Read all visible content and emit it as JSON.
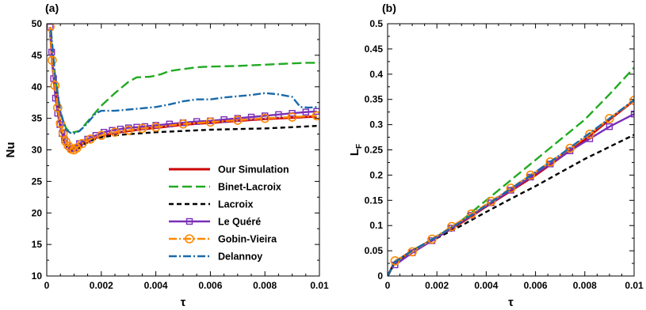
{
  "chart_data": [
    {
      "panel": "(a)",
      "type": "line",
      "xlabel": "τ",
      "ylabel": "Nu",
      "xlim": [
        0,
        0.01
      ],
      "ylim": [
        10,
        50
      ],
      "xticks": [
        0,
        0.002,
        0.004,
        0.006,
        0.008,
        0.01
      ],
      "xtick_labels": [
        "0",
        "0.002",
        "0.004",
        "0.006",
        "0.008",
        "0.01"
      ],
      "yticks": [
        10,
        15,
        20,
        25,
        30,
        35,
        40,
        45,
        50
      ],
      "ytick_labels": [
        "10",
        "15",
        "20",
        "25",
        "30",
        "35",
        "40",
        "45",
        "50"
      ],
      "grid": false,
      "legend": "lower-right",
      "series": [
        {
          "name": "Our Simulation",
          "color": "#cc0000",
          "dash": "solid",
          "marker": "none",
          "x": [
            0.00012,
            0.0002,
            0.0003,
            0.0004,
            0.0005,
            0.0006,
            0.0007,
            0.0008,
            0.0009,
            0.001,
            0.0011,
            0.0013,
            0.0016,
            0.002,
            0.0025,
            0.003,
            0.0035,
            0.004,
            0.005,
            0.006,
            0.007,
            0.008,
            0.009,
            0.0099
          ],
          "y": [
            49.5,
            44.0,
            40.0,
            36.5,
            34.0,
            32.5,
            31.2,
            30.5,
            30.0,
            29.9,
            30.2,
            30.9,
            31.6,
            32.2,
            32.7,
            33.0,
            33.3,
            33.5,
            34.0,
            34.3,
            34.6,
            34.9,
            35.1,
            35.3
          ]
        },
        {
          "name": "Binet-Lacroix",
          "color": "#22aa22",
          "dash": "long",
          "marker": "none",
          "x": [
            0.00015,
            0.0003,
            0.0005,
            0.0007,
            0.0008,
            0.001,
            0.0012,
            0.0014,
            0.0016,
            0.0018,
            0.002,
            0.0025,
            0.003,
            0.0033,
            0.0038,
            0.0042,
            0.0045,
            0.005,
            0.0055,
            0.006,
            0.007,
            0.0075,
            0.008,
            0.0085,
            0.009,
            0.0095,
            0.01
          ],
          "y": [
            49.0,
            42.0,
            36.0,
            33.5,
            33.0,
            32.8,
            33.0,
            34.0,
            35.0,
            36.0,
            37.0,
            39.0,
            40.8,
            41.5,
            41.6,
            42.0,
            42.5,
            42.8,
            43.1,
            43.2,
            43.3,
            43.4,
            43.5,
            43.6,
            43.7,
            43.8,
            43.8
          ]
        },
        {
          "name": "Lacroix",
          "color": "#000000",
          "dash": "short",
          "marker": "none",
          "x": [
            0.00012,
            0.0002,
            0.0003,
            0.0004,
            0.0005,
            0.0006,
            0.0007,
            0.0008,
            0.0009,
            0.001,
            0.0011,
            0.0013,
            0.0015,
            0.0017,
            0.002,
            0.0025,
            0.003,
            0.004,
            0.005,
            0.006,
            0.007,
            0.008,
            0.009,
            0.0099
          ],
          "y": [
            49.5,
            44.0,
            39.5,
            36.0,
            33.5,
            31.8,
            30.8,
            30.2,
            29.9,
            29.8,
            30.0,
            30.7,
            31.2,
            31.6,
            32.0,
            32.3,
            32.5,
            32.8,
            33.0,
            33.2,
            33.3,
            33.4,
            33.6,
            33.8
          ]
        },
        {
          "name": "Le Quéré",
          "color": "#7a2eb8",
          "dash": "solid",
          "marker": "square",
          "x": [
            0.00012,
            0.00018,
            0.00025,
            0.00032,
            0.0004,
            0.00048,
            0.00056,
            0.00065,
            0.00075,
            0.0009,
            0.001,
            0.0012,
            0.0015,
            0.0018,
            0.0021,
            0.0024,
            0.0027,
            0.003,
            0.0033,
            0.0036,
            0.004,
            0.0045,
            0.005,
            0.0055,
            0.006,
            0.0065,
            0.007,
            0.0075,
            0.008,
            0.0085,
            0.009,
            0.0095,
            0.0099
          ],
          "y": [
            49.5,
            45.5,
            41.3,
            38.2,
            35.8,
            34.0,
            32.6,
            31.6,
            30.8,
            30.2,
            30.3,
            31.0,
            31.7,
            32.3,
            32.8,
            33.1,
            33.3,
            33.5,
            33.6,
            33.7,
            33.9,
            34.1,
            34.3,
            34.5,
            34.6,
            34.8,
            35.0,
            35.2,
            35.4,
            35.6,
            35.8,
            36.0,
            36.1
          ]
        },
        {
          "name": "Gobin-Vieira",
          "color": "#ff8800",
          "dash": "dashdot",
          "marker": "circle",
          "x": [
            0.00012,
            0.0002,
            0.0003,
            0.0004,
            0.0005,
            0.0006,
            0.0007,
            0.0008,
            0.0009,
            0.001,
            0.0011,
            0.0013,
            0.0016,
            0.002,
            0.0025,
            0.003,
            0.0035,
            0.004,
            0.005,
            0.006,
            0.007,
            0.008,
            0.009,
            0.0099
          ],
          "y": [
            49.5,
            44.2,
            40.2,
            36.7,
            34.2,
            32.6,
            31.3,
            30.6,
            30.1,
            30.0,
            30.3,
            31.0,
            31.7,
            32.3,
            32.8,
            33.1,
            33.4,
            33.6,
            34.1,
            34.4,
            34.7,
            35.0,
            35.2,
            35.4
          ]
        },
        {
          "name": "Delannoy",
          "color": "#1a6aaa",
          "dash": "dashdot",
          "marker": "none",
          "x": [
            0.00015,
            0.0003,
            0.0005,
            0.0007,
            0.0009,
            0.001,
            0.0012,
            0.0014,
            0.0016,
            0.0018,
            0.002,
            0.0025,
            0.003,
            0.0035,
            0.004,
            0.0045,
            0.005,
            0.0055,
            0.006,
            0.0065,
            0.007,
            0.0075,
            0.008,
            0.0085,
            0.009,
            0.0093,
            0.0096,
            0.01
          ],
          "y": [
            49.0,
            42.0,
            36.0,
            33.2,
            32.6,
            32.6,
            33.0,
            33.8,
            34.8,
            35.8,
            36.2,
            36.2,
            36.4,
            36.6,
            36.8,
            37.2,
            37.7,
            38.0,
            38.0,
            38.3,
            38.5,
            38.7,
            39.0,
            38.8,
            38.4,
            36.8,
            36.7,
            36.8
          ]
        }
      ]
    },
    {
      "panel": "(b)",
      "type": "line",
      "xlabel": "τ",
      "ylabel": "L",
      "ylabel_sub": "F",
      "xlim": [
        0,
        0.01
      ],
      "ylim": [
        0,
        0.5
      ],
      "xticks": [
        0,
        0.002,
        0.004,
        0.006,
        0.008,
        0.01
      ],
      "xtick_labels": [
        "0",
        "0.002",
        "0.004",
        "0.006",
        "0.008",
        "0.01"
      ],
      "yticks": [
        0,
        0.05,
        0.1,
        0.15,
        0.2,
        0.25,
        0.3,
        0.35,
        0.4,
        0.45,
        0.5
      ],
      "ytick_labels": [
        "0",
        "0.05",
        "0.1",
        "0.15",
        "0.2",
        "0.25",
        "0.3",
        "0.35",
        "0.4",
        "0.45",
        "0.5"
      ],
      "grid": false,
      "series": [
        {
          "name": "Our Simulation",
          "color": "#cc0000",
          "dash": "solid",
          "marker": "none",
          "x": [
            0,
            0.0003,
            0.001,
            0.002,
            0.003,
            0.004,
            0.005,
            0.006,
            0.007,
            0.008,
            0.009,
            0.01
          ],
          "y": [
            0,
            0.028,
            0.05,
            0.077,
            0.106,
            0.138,
            0.169,
            0.2,
            0.235,
            0.27,
            0.31,
            0.348
          ]
        },
        {
          "name": "Binet-Lacroix",
          "color": "#22aa22",
          "dash": "long",
          "marker": "none",
          "x": [
            0,
            0.0003,
            0.001,
            0.002,
            0.003,
            0.004,
            0.005,
            0.006,
            0.007,
            0.008,
            0.009,
            0.01
          ],
          "y": [
            0,
            0.027,
            0.05,
            0.078,
            0.11,
            0.15,
            0.19,
            0.23,
            0.27,
            0.31,
            0.36,
            0.413
          ]
        },
        {
          "name": "Lacroix",
          "color": "#000000",
          "dash": "short",
          "marker": "none",
          "x": [
            0,
            0.0003,
            0.001,
            0.002,
            0.003,
            0.004,
            0.005,
            0.006,
            0.007,
            0.008,
            0.009,
            0.01
          ],
          "y": [
            0,
            0.027,
            0.049,
            0.075,
            0.1,
            0.127,
            0.153,
            0.178,
            0.205,
            0.232,
            0.256,
            0.28
          ]
        },
        {
          "name": "Le Quéré",
          "color": "#7a2eb8",
          "dash": "solid",
          "marker": "square",
          "x": [
            0.0003,
            0.001,
            0.0018,
            0.0026,
            0.0034,
            0.0042,
            0.005,
            0.0058,
            0.0066,
            0.0074,
            0.0082,
            0.009,
            0.01
          ],
          "y": [
            0.022,
            0.046,
            0.07,
            0.095,
            0.12,
            0.145,
            0.17,
            0.196,
            0.222,
            0.248,
            0.272,
            0.296,
            0.321
          ]
        },
        {
          "name": "Gobin-Vieira",
          "color": "#ff8800",
          "dash": "dashdot",
          "marker": "circle",
          "x": [
            0.0003,
            0.001,
            0.0018,
            0.0026,
            0.0034,
            0.0042,
            0.005,
            0.0058,
            0.0066,
            0.0074,
            0.0082,
            0.009,
            0.01
          ],
          "y": [
            0.03,
            0.048,
            0.073,
            0.098,
            0.123,
            0.148,
            0.174,
            0.2,
            0.226,
            0.253,
            0.281,
            0.312,
            0.348
          ]
        },
        {
          "name": "Delannoy",
          "color": "#1a6aaa",
          "dash": "dashdot",
          "marker": "none",
          "x": [
            0,
            0.0003,
            0.001,
            0.002,
            0.003,
            0.004,
            0.005,
            0.006,
            0.007,
            0.008,
            0.009,
            0.01
          ],
          "y": [
            0,
            0.028,
            0.05,
            0.078,
            0.108,
            0.14,
            0.173,
            0.206,
            0.24,
            0.276,
            0.312,
            0.349
          ]
        }
      ]
    }
  ]
}
